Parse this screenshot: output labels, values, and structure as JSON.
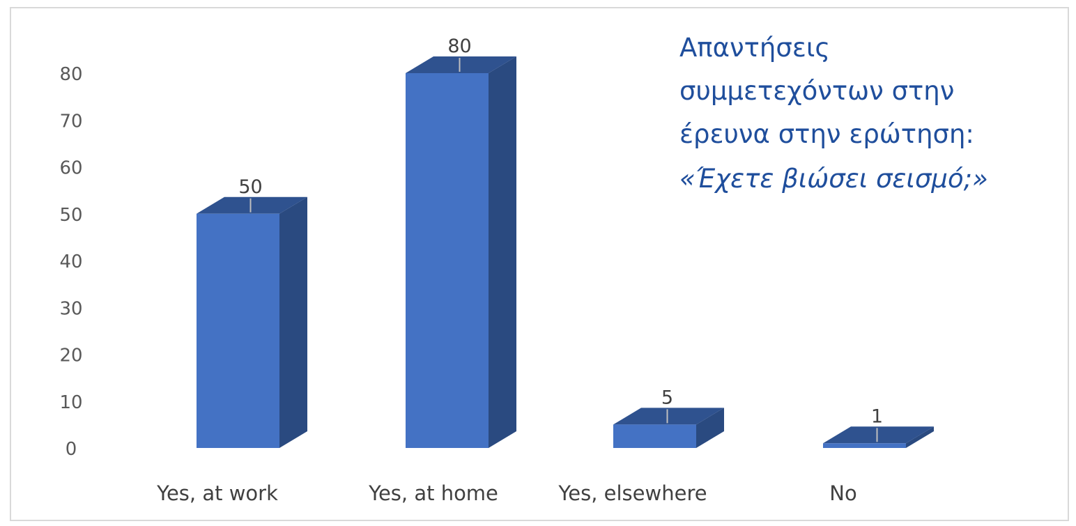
{
  "chart_data": {
    "type": "bar",
    "style": "3d-column",
    "categories": [
      "Yes, at work",
      "Yes, at home",
      "Yes, elsewhere",
      "No"
    ],
    "values": [
      50,
      80,
      5,
      1
    ],
    "data_labels": [
      "50",
      "80",
      "5",
      "1"
    ],
    "ylim": [
      0,
      80
    ],
    "yticks": [
      0,
      10,
      20,
      30,
      40,
      50,
      60,
      70,
      80
    ],
    "grid": false,
    "colors": {
      "front": "#4472c4",
      "top": "#2f528f",
      "side": "#2a4a80",
      "annotation": "#1f4e9c"
    },
    "annotation": {
      "lines": [
        "Απαντήσεις",
        "συμμετεχόντων στην",
        "έρευνα στην ερώτηση:"
      ],
      "question": "«Έχετε βιώσει σεισμό;»"
    }
  }
}
